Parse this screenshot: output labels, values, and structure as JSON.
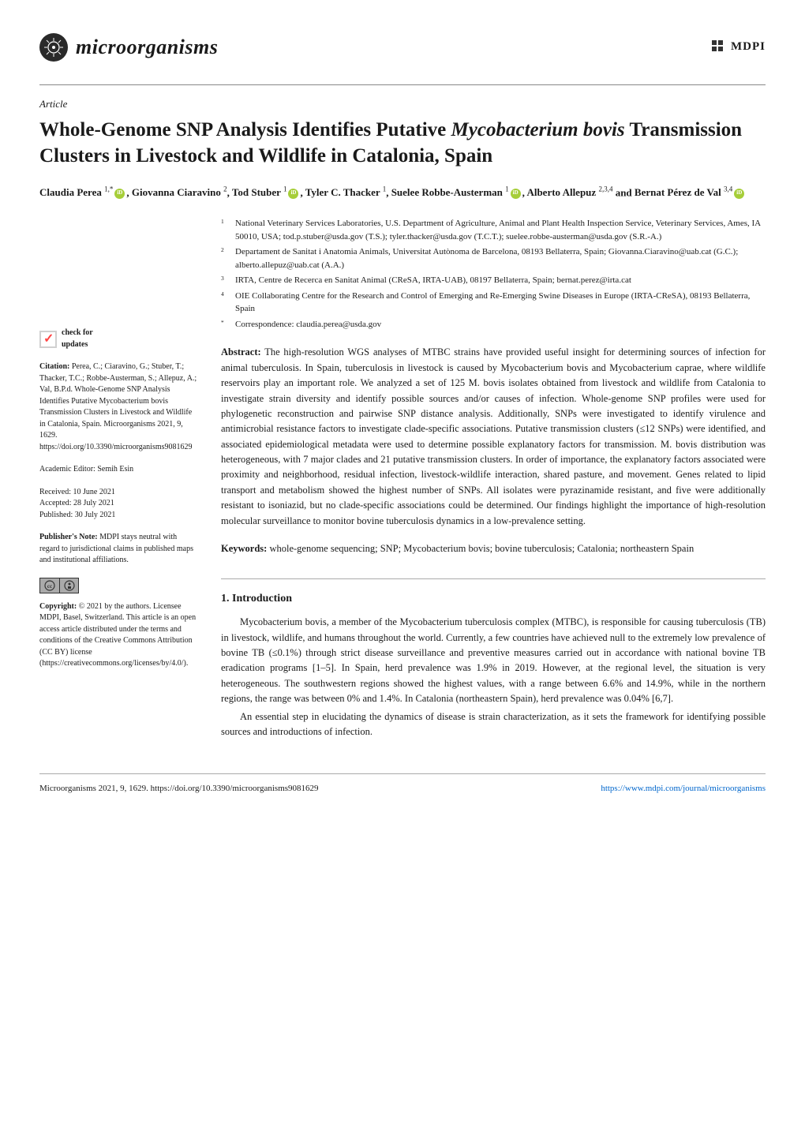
{
  "journal": {
    "name": "microorganisms",
    "publisher": "MDPI"
  },
  "article": {
    "type": "Article",
    "title_pre": "Whole-Genome SNP Analysis Identifies Putative ",
    "title_species": "Mycobacterium bovis",
    "title_post": " Transmission Clusters in Livestock and Wildlife in Catalonia, Spain"
  },
  "authors": {
    "list": [
      {
        "name": "Claudia Perea",
        "sup": "1,*",
        "orcid": true
      },
      {
        "name": "Giovanna Ciaravino",
        "sup": "2",
        "orcid": false
      },
      {
        "name": "Tod Stuber",
        "sup": "1",
        "orcid": true
      },
      {
        "name": "Tyler C. Thacker",
        "sup": "1",
        "orcid": false
      },
      {
        "name": "Suelee Robbe-Austerman",
        "sup": "1",
        "orcid": true
      },
      {
        "name": "Alberto Allepuz",
        "sup": "2,3,4",
        "orcid": false
      },
      {
        "name": "Bernat Pérez de Val",
        "sup": "3,4",
        "orcid": true
      }
    ]
  },
  "affiliations": [
    {
      "num": "1",
      "text": "National Veterinary Services Laboratories, U.S. Department of Agriculture, Animal and Plant Health Inspection Service, Veterinary Services, Ames, IA 50010, USA; tod.p.stuber@usda.gov (T.S.); tyler.thacker@usda.gov (T.C.T.); suelee.robbe-austerman@usda.gov (S.R.-A.)"
    },
    {
      "num": "2",
      "text": "Departament de Sanitat i Anatomia Animals, Universitat Autònoma de Barcelona, 08193 Bellaterra, Spain; Giovanna.Ciaravino@uab.cat (G.C.); alberto.allepuz@uab.cat (A.A.)"
    },
    {
      "num": "3",
      "text": "IRTA, Centre de Recerca en Sanitat Animal (CReSA, IRTA-UAB), 08197 Bellaterra, Spain; bernat.perez@irta.cat"
    },
    {
      "num": "4",
      "text": "OIE Collaborating Centre for the Research and Control of Emerging and Re-Emerging Swine Diseases in Europe (IRTA-CReSA), 08193 Bellaterra, Spain"
    },
    {
      "num": "*",
      "text": "Correspondence: claudia.perea@usda.gov"
    }
  ],
  "abstract": {
    "label": "Abstract:",
    "text": "The high-resolution WGS analyses of MTBC strains have provided useful insight for determining sources of infection for animal tuberculosis. In Spain, tuberculosis in livestock is caused by Mycobacterium bovis and Mycobacterium caprae, where wildlife reservoirs play an important role. We analyzed a set of 125 M. bovis isolates obtained from livestock and wildlife from Catalonia to investigate strain diversity and identify possible sources and/or causes of infection. Whole-genome SNP profiles were used for phylogenetic reconstruction and pairwise SNP distance analysis. Additionally, SNPs were investigated to identify virulence and antimicrobial resistance factors to investigate clade-specific associations. Putative transmission clusters (≤12 SNPs) were identified, and associated epidemiological metadata were used to determine possible explanatory factors for transmission. M. bovis distribution was heterogeneous, with 7 major clades and 21 putative transmission clusters. In order of importance, the explanatory factors associated were proximity and neighborhood, residual infection, livestock-wildlife interaction, shared pasture, and movement. Genes related to lipid transport and metabolism showed the highest number of SNPs. All isolates were pyrazinamide resistant, and five were additionally resistant to isoniazid, but no clade-specific associations could be determined. Our findings highlight the importance of high-resolution molecular surveillance to monitor bovine tuberculosis dynamics in a low-prevalence setting."
  },
  "keywords": {
    "label": "Keywords:",
    "text": "whole-genome sequencing; SNP; Mycobacterium bovis; bovine tuberculosis; Catalonia; northeastern Spain"
  },
  "intro": {
    "heading": "1. Introduction",
    "para1": "Mycobacterium bovis, a member of the Mycobacterium tuberculosis complex (MTBC), is responsible for causing tuberculosis (TB) in livestock, wildlife, and humans throughout the world. Currently, a few countries have achieved null to the extremely low prevalence of bovine TB (≤0.1%) through strict disease surveillance and preventive measures carried out in accordance with national bovine TB eradication programs [1–5]. In Spain, herd prevalence was 1.9% in 2019. However, at the regional level, the situation is very heterogeneous. The southwestern regions showed the highest values, with a range between 6.6% and 14.9%, while in the northern regions, the range was between 0% and 1.4%. In Catalonia (northeastern Spain), herd prevalence was 0.04% [6,7].",
    "para2": "An essential step in elucidating the dynamics of disease is strain characterization, as it sets the framework for identifying possible sources and introductions of infection."
  },
  "sidebar": {
    "check_updates": "check for updates",
    "citation_label": "Citation:",
    "citation_text": "Perea, C.; Ciaravino, G.; Stuber, T.; Thacker, T.C.; Robbe-Austerman, S.; Allepuz, A.; Val, B.P.d. Whole-Genome SNP Analysis Identifies Putative Mycobacterium bovis Transmission Clusters in Livestock and Wildlife in Catalonia, Spain. Microorganisms 2021, 9, 1629. https://doi.org/10.3390/microorganisms9081629",
    "editor_label": "Academic Editor:",
    "editor_value": "Semih Esin",
    "received_label": "Received:",
    "received_value": "10 June 2021",
    "accepted_label": "Accepted:",
    "accepted_value": "28 July 2021",
    "published_label": "Published:",
    "published_value": "30 July 2021",
    "publishers_note_label": "Publisher's Note:",
    "publishers_note_text": "MDPI stays neutral with regard to jurisdictional claims in published maps and institutional affiliations.",
    "copyright_label": "Copyright:",
    "copyright_text": "© 2021 by the authors. Licensee MDPI, Basel, Switzerland. This article is an open access article distributed under the terms and conditions of the Creative Commons Attribution (CC BY) license (https://creativecommons.org/licenses/by/4.0/)."
  },
  "footer": {
    "left": "Microorganisms 2021, 9, 1629. https://doi.org/10.3390/microorganisms9081629",
    "right": "https://www.mdpi.com/journal/microorganisms"
  },
  "colors": {
    "orcid_green": "#a6ce39",
    "link_blue": "#0066cc",
    "text": "#1a1a1a",
    "check_red": "#ff4444"
  }
}
